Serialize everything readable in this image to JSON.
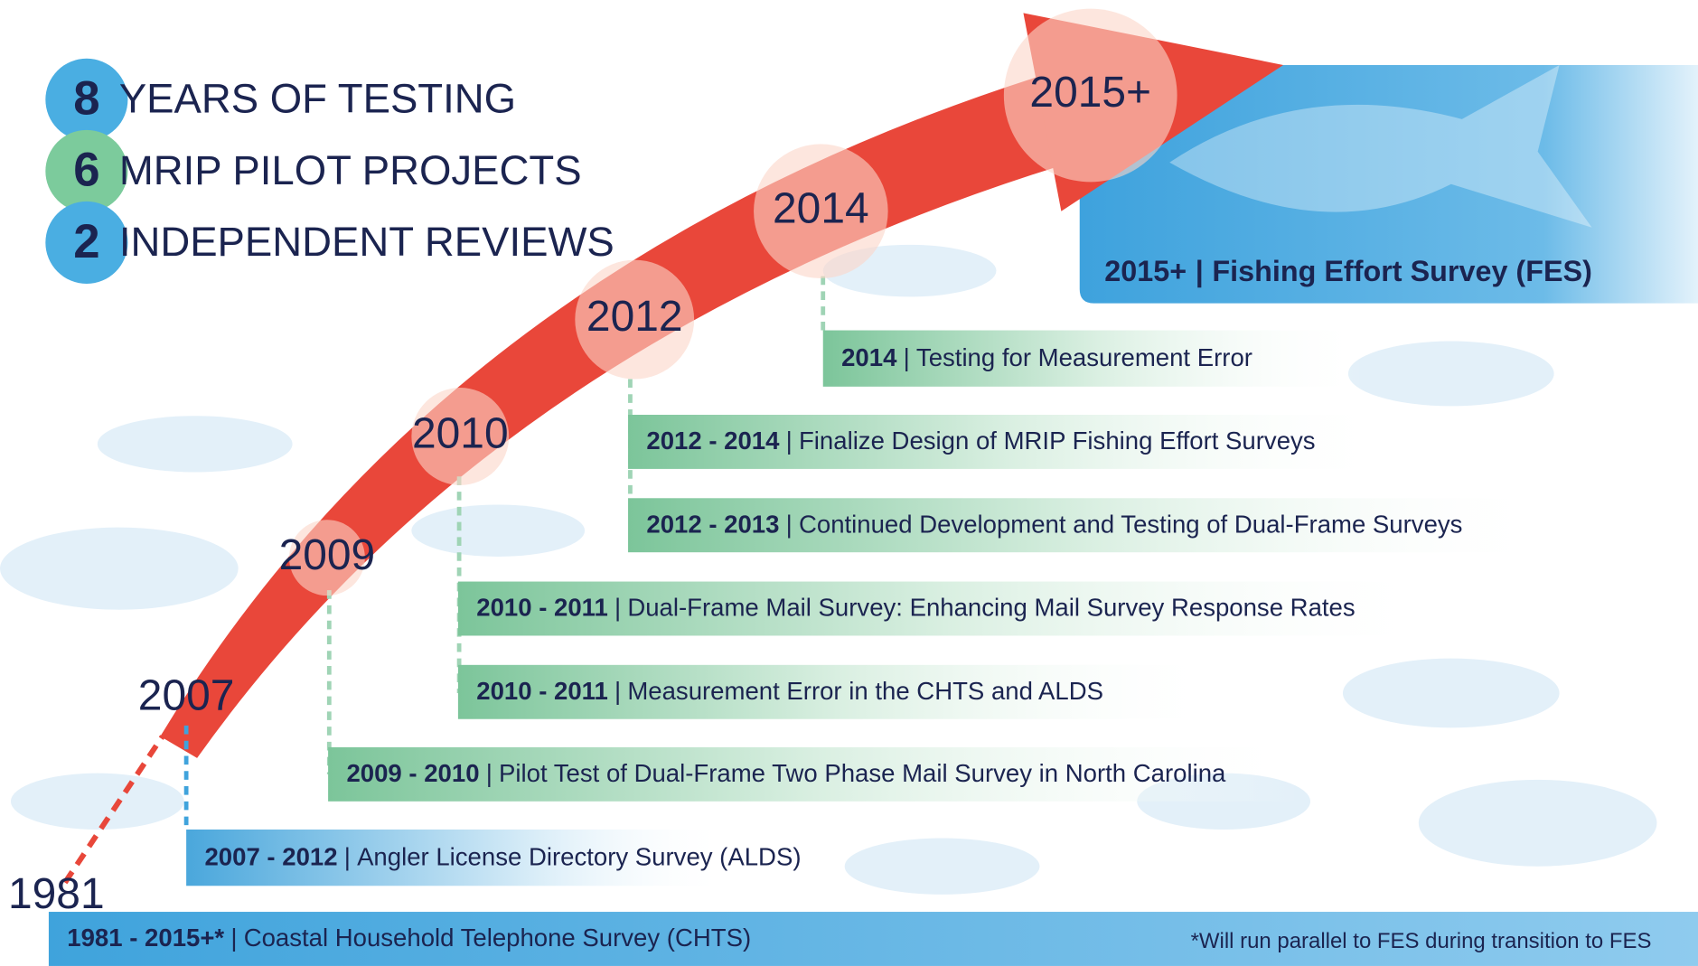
{
  "stats": [
    {
      "number": "8",
      "text": "YEARS OF TESTING"
    },
    {
      "number": "6",
      "text": "MRIP PILOT PROJECTS"
    },
    {
      "number": "2",
      "text": "INDEPENDENT REVIEWS"
    }
  ],
  "years": [
    "1981",
    "2007",
    "2009",
    "2010",
    "2012",
    "2014",
    "2015+"
  ],
  "separator": "|",
  "fes": {
    "period": "2015+",
    "text": "Fishing Effort Survey (FES)"
  },
  "bars": [
    {
      "period": "2014",
      "text": "Testing for Measurement Error"
    },
    {
      "period": "2012 - 2014",
      "text": "Finalize Design of MRIP Fishing Effort Surveys"
    },
    {
      "period": "2012 - 2013",
      "text": "Continued Development and Testing of Dual-Frame Surveys"
    },
    {
      "period": "2010 - 2011",
      "text": "Dual-Frame Mail Survey: Enhancing Mail Survey Response Rates"
    },
    {
      "period": "2010 - 2011",
      "text": "Measurement Error in the CHTS and ALDS"
    },
    {
      "period": "2009 - 2010",
      "text": "Pilot Test of Dual-Frame Two Phase Mail Survey in North Carolina"
    },
    {
      "period": "2007 - 2012",
      "text": "Angler License Directory Survey (ALDS)"
    },
    {
      "period": "1981 - 2015+*",
      "text": "Coastal Household Telephone Survey (CHTS)"
    }
  ],
  "footnote": "*Will run parallel to FES during transition to FES"
}
